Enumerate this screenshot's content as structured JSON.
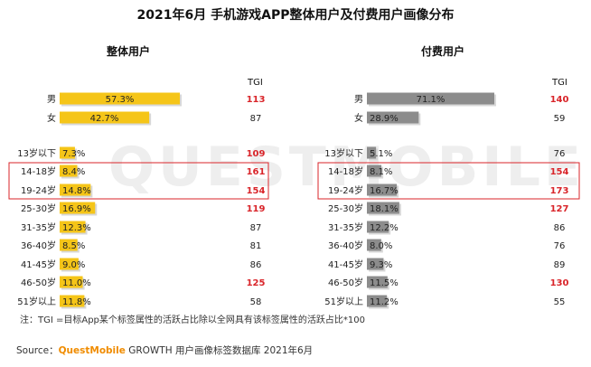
{
  "title": "2021年6月 手机游戏APP整体用户及付费用户画像分布",
  "watermark": "QUESTMOBILE",
  "tgi_label": "TGI",
  "note": "注：TGI =目标App某个标签属性的活跃占比除以全网具有该标签属性的活跃占比*100",
  "source_prefix": "Source：",
  "source_brand": "QuestMobile",
  "source_rest": " GROWTH 用户画像标签数据库 2021年6月",
  "colors": {
    "overall_bar": "#f5c518",
    "paid_bar": "#8c8c8c",
    "tgi_high": "#d9252a",
    "tgi_normal": "#222222",
    "highlight_box": "#d9252a"
  },
  "chart_data": [
    {
      "type": "bar",
      "orientation": "horizontal",
      "title": "整体用户",
      "categories": [
        "男",
        "女",
        "13岁以下",
        "14-18岁",
        "19-24岁",
        "25-30岁",
        "31-35岁",
        "36-40岁",
        "41-45岁",
        "46-50岁",
        "51岁以上"
      ],
      "values": [
        57.3,
        42.7,
        7.3,
        8.4,
        14.8,
        16.9,
        12.3,
        8.5,
        9.0,
        11.0,
        11.8
      ],
      "value_labels": [
        "57.3%",
        "42.7%",
        "7.3%",
        "8.4%",
        "14.8%",
        "16.9%",
        "12.3%",
        "8.5%",
        "9.0%",
        "11.0%",
        "11.8%"
      ],
      "tgi": [
        113,
        87,
        109,
        161,
        154,
        119,
        87,
        81,
        86,
        125,
        58
      ],
      "tgi_highlighted": [
        true,
        false,
        true,
        true,
        true,
        true,
        false,
        false,
        false,
        true,
        false
      ]
    },
    {
      "type": "bar",
      "orientation": "horizontal",
      "title": "付费用户",
      "categories": [
        "男",
        "女",
        "13岁以下",
        "14-18岁",
        "19-24岁",
        "25-30岁",
        "31-35岁",
        "36-40岁",
        "41-45岁",
        "46-50岁",
        "51岁以上"
      ],
      "values": [
        71.1,
        28.9,
        5.1,
        8.1,
        16.7,
        18.1,
        12.2,
        8.0,
        9.3,
        11.5,
        11.2
      ],
      "value_labels": [
        "71.1%",
        "28.9%",
        "5.1%",
        "8.1%",
        "16.7%",
        "18.1%",
        "12.2%",
        "8.0%",
        "9.3%",
        "11.5%",
        "11.2%"
      ],
      "tgi": [
        140,
        59,
        76,
        154,
        173,
        127,
        86,
        76,
        89,
        130,
        55
      ],
      "tgi_highlighted": [
        true,
        false,
        false,
        true,
        true,
        true,
        false,
        false,
        false,
        true,
        false
      ]
    }
  ],
  "highlighted_categories": [
    "14-18岁",
    "19-24岁"
  ]
}
